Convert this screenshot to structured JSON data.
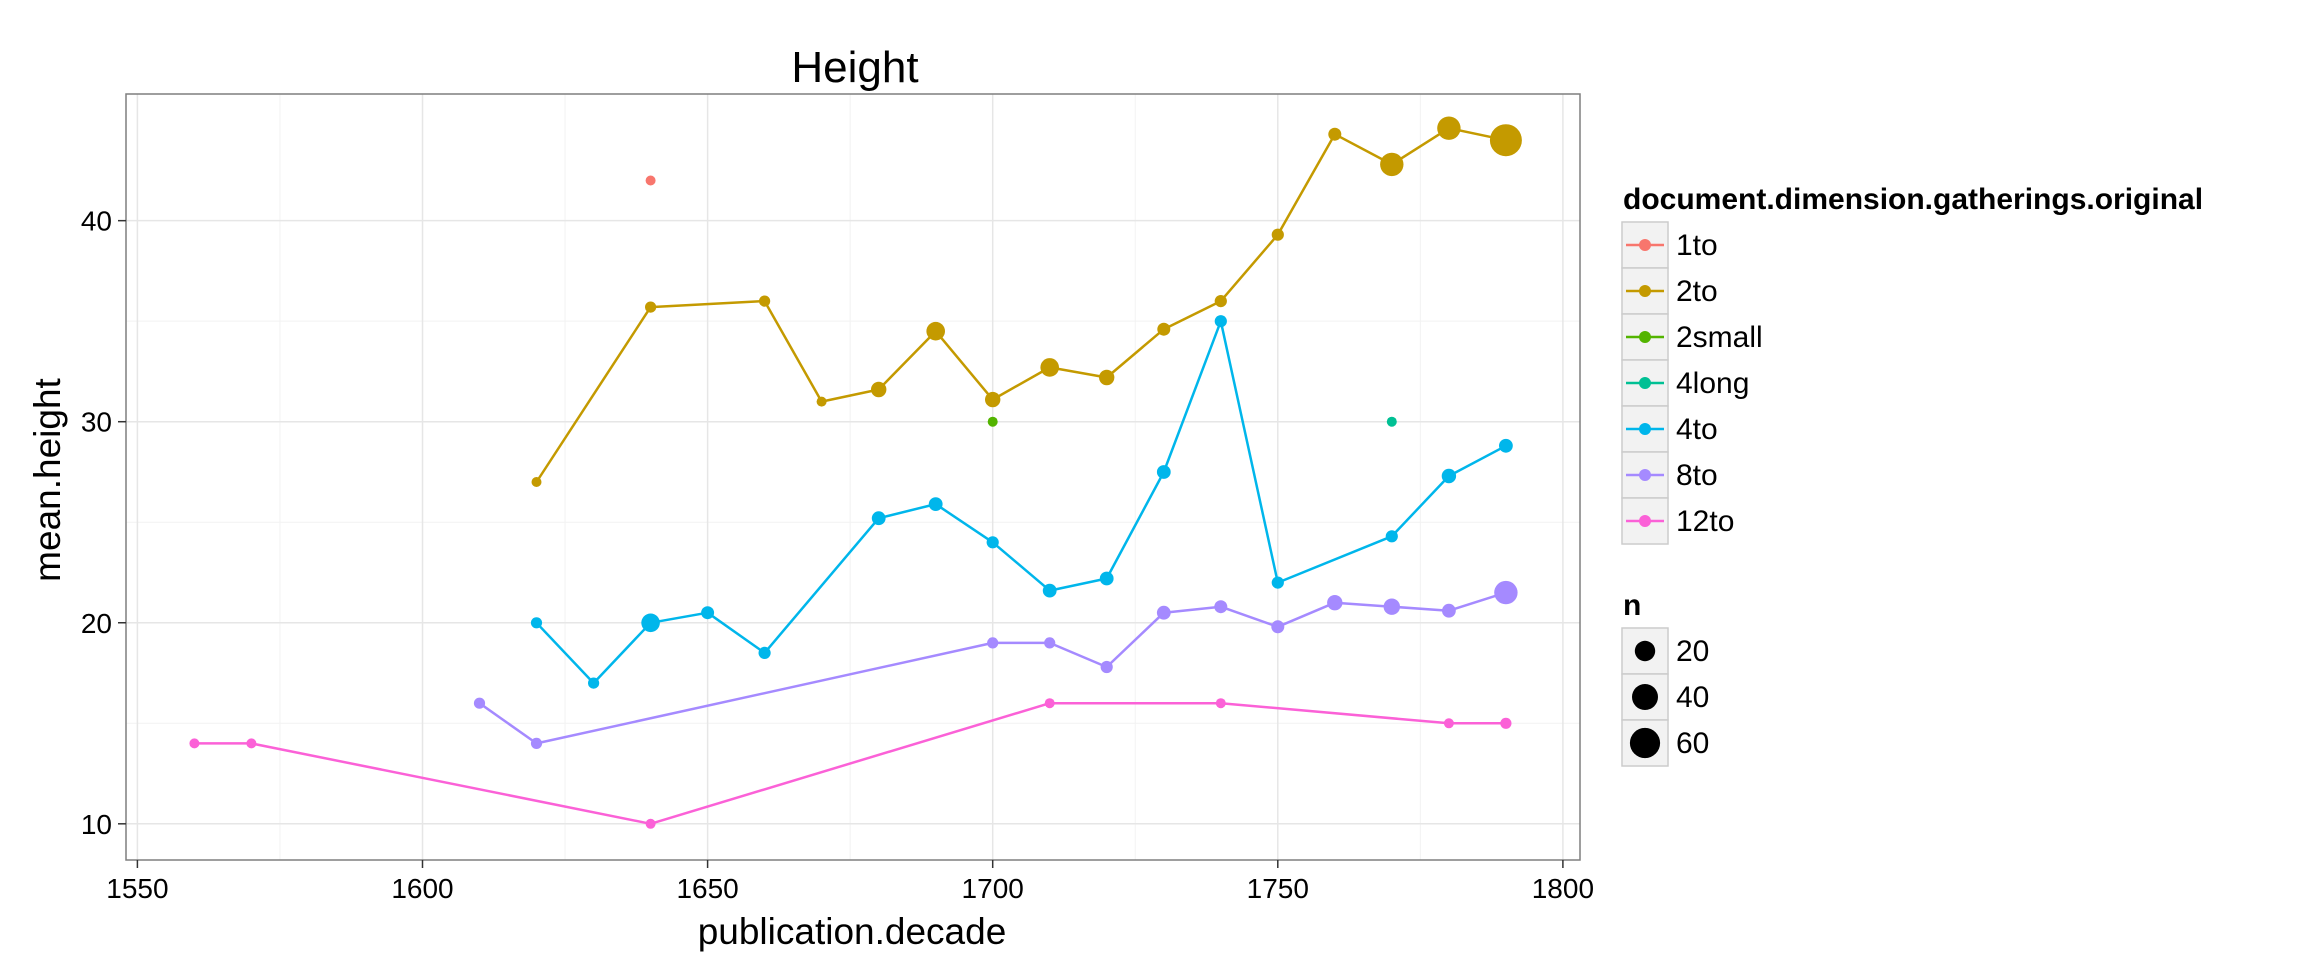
{
  "chart_data": {
    "type": "line",
    "title": "Height",
    "xlabel": "publication.decade",
    "ylabel": "mean.height",
    "xlim": [
      1548,
      1803
    ],
    "ylim": [
      8.2,
      46.3
    ],
    "x_ticks": [
      1550,
      1600,
      1650,
      1700,
      1750,
      1800
    ],
    "y_ticks": [
      10,
      20,
      30,
      40
    ],
    "grid": true,
    "legend_placement": "right",
    "color_legend_title": "document.dimension.gatherings.original",
    "size_legend_title": "n",
    "size_legend": [
      {
        "label": "20",
        "n": 20
      },
      {
        "label": "40",
        "n": 40
      },
      {
        "label": "60",
        "n": 60
      }
    ],
    "series": [
      {
        "name": "1to",
        "color": "#F8766D",
        "points": [
          {
            "x": 1640,
            "y": 42.0,
            "n": 1
          }
        ]
      },
      {
        "name": "2to",
        "color": "#C49A00",
        "points": [
          {
            "x": 1620,
            "y": 27.0,
            "n": 1
          },
          {
            "x": 1640,
            "y": 35.7,
            "n": 2
          },
          {
            "x": 1660,
            "y": 36.0,
            "n": 2
          },
          {
            "x": 1670,
            "y": 31.0,
            "n": 1
          },
          {
            "x": 1680,
            "y": 31.6,
            "n": 8
          },
          {
            "x": 1690,
            "y": 34.5,
            "n": 15
          },
          {
            "x": 1700,
            "y": 31.1,
            "n": 8
          },
          {
            "x": 1710,
            "y": 32.7,
            "n": 15
          },
          {
            "x": 1720,
            "y": 32.2,
            "n": 8
          },
          {
            "x": 1730,
            "y": 34.6,
            "n": 4
          },
          {
            "x": 1740,
            "y": 36.0,
            "n": 3
          },
          {
            "x": 1750,
            "y": 39.3,
            "n": 3
          },
          {
            "x": 1760,
            "y": 44.3,
            "n": 4
          },
          {
            "x": 1770,
            "y": 42.8,
            "n": 30
          },
          {
            "x": 1780,
            "y": 44.6,
            "n": 30
          },
          {
            "x": 1790,
            "y": 44.0,
            "n": 70
          }
        ]
      },
      {
        "name": "2small",
        "color": "#53B400",
        "points": [
          {
            "x": 1700,
            "y": 30.0,
            "n": 1
          }
        ]
      },
      {
        "name": "4long",
        "color": "#00C094",
        "points": [
          {
            "x": 1770,
            "y": 30.0,
            "n": 1
          }
        ]
      },
      {
        "name": "4to",
        "color": "#00B6EB",
        "points": [
          {
            "x": 1620,
            "y": 20.0,
            "n": 2
          },
          {
            "x": 1630,
            "y": 17.0,
            "n": 2
          },
          {
            "x": 1640,
            "y": 20.0,
            "n": 15
          },
          {
            "x": 1650,
            "y": 20.5,
            "n": 4
          },
          {
            "x": 1660,
            "y": 18.5,
            "n": 3
          },
          {
            "x": 1680,
            "y": 25.2,
            "n": 5
          },
          {
            "x": 1690,
            "y": 25.9,
            "n": 5
          },
          {
            "x": 1700,
            "y": 24.0,
            "n": 3
          },
          {
            "x": 1710,
            "y": 21.6,
            "n": 5
          },
          {
            "x": 1720,
            "y": 22.2,
            "n": 5
          },
          {
            "x": 1730,
            "y": 27.5,
            "n": 5
          },
          {
            "x": 1740,
            "y": 35.0,
            "n": 3
          },
          {
            "x": 1750,
            "y": 22.0,
            "n": 3
          },
          {
            "x": 1770,
            "y": 24.3,
            "n": 3
          },
          {
            "x": 1780,
            "y": 27.3,
            "n": 6
          },
          {
            "x": 1790,
            "y": 28.8,
            "n": 5
          }
        ]
      },
      {
        "name": "8to",
        "color": "#A58AFF",
        "points": [
          {
            "x": 1610,
            "y": 16.0,
            "n": 2
          },
          {
            "x": 1620,
            "y": 14.0,
            "n": 2
          },
          {
            "x": 1700,
            "y": 19.0,
            "n": 2
          },
          {
            "x": 1710,
            "y": 19.0,
            "n": 2
          },
          {
            "x": 1720,
            "y": 17.8,
            "n": 3
          },
          {
            "x": 1730,
            "y": 20.5,
            "n": 5
          },
          {
            "x": 1740,
            "y": 20.8,
            "n": 4
          },
          {
            "x": 1750,
            "y": 19.8,
            "n": 4
          },
          {
            "x": 1760,
            "y": 21.0,
            "n": 8
          },
          {
            "x": 1770,
            "y": 20.8,
            "n": 10
          },
          {
            "x": 1780,
            "y": 20.6,
            "n": 5
          },
          {
            "x": 1790,
            "y": 21.5,
            "n": 30
          }
        ]
      },
      {
        "name": "12to",
        "color": "#FB61D7",
        "points": [
          {
            "x": 1560,
            "y": 14.0,
            "n": 1
          },
          {
            "x": 1570,
            "y": 14.0,
            "n": 1
          },
          {
            "x": 1640,
            "y": 10.0,
            "n": 1
          },
          {
            "x": 1710,
            "y": 16.0,
            "n": 1
          },
          {
            "x": 1740,
            "y": 16.0,
            "n": 1
          },
          {
            "x": 1780,
            "y": 15.0,
            "n": 1
          },
          {
            "x": 1790,
            "y": 15.0,
            "n": 2
          }
        ]
      }
    ]
  }
}
